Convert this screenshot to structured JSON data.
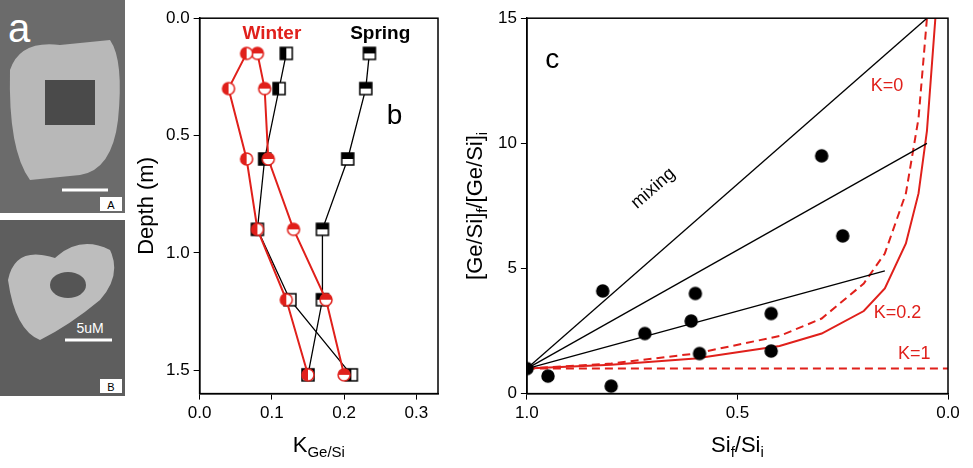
{
  "figure": {
    "letter": "a",
    "images": [
      {
        "label": "A"
      },
      {
        "label": "B",
        "scale_bar": "5uM"
      }
    ]
  },
  "chart_data": [
    {
      "type": "line",
      "letter": "b",
      "xlabel": [
        "K",
        {
          "sub": "Ge/Si"
        }
      ],
      "ylabel": [
        "Depth (m)"
      ],
      "xlim": [
        0,
        0.33
      ],
      "xticks": [
        {
          "value": 0,
          "label": "0.0"
        },
        {
          "value": 0.1,
          "label": "0.1"
        },
        {
          "value": 0.2,
          "label": "0.2"
        },
        {
          "value": 0.3,
          "label": "0.3"
        }
      ],
      "ylim": [
        1.6,
        0
      ],
      "yticks": [
        {
          "value": 0,
          "label": "0.0"
        },
        {
          "value": 0.5,
          "label": "0.5"
        },
        {
          "value": 1,
          "label": "1.0"
        },
        {
          "value": 1.5,
          "label": "1.5"
        }
      ],
      "grid": false,
      "series": [
        {
          "name": "Winter",
          "color": "#e0201b",
          "marker": "circle_left_half",
          "line_style": "solid",
          "x": [
            0.065,
            0.04,
            0.065,
            0.08,
            0.12,
            0.15
          ],
          "y": [
            0.15,
            0.3,
            0.6,
            0.9,
            1.2,
            1.52
          ]
        },
        {
          "name": "Winter",
          "color": "#e0201b",
          "marker": "circle_top_half",
          "line_style": "solid",
          "x": [
            0.08,
            0.09,
            0.095,
            0.13,
            0.175,
            0.2
          ],
          "y": [
            0.15,
            0.3,
            0.6,
            0.9,
            1.2,
            1.52
          ]
        },
        {
          "name": "Spring",
          "color": "#000000",
          "marker": "square_left_half",
          "line_style": "solid",
          "x": [
            0.12,
            0.11,
            0.09,
            0.08,
            0.125,
            0.21
          ],
          "y": [
            0.15,
            0.3,
            0.6,
            0.9,
            1.2,
            1.52
          ]
        },
        {
          "name": "Spring",
          "color": "#000000",
          "marker": "square_top_half",
          "line_style": "solid",
          "x": [
            0.235,
            0.23,
            0.205,
            0.17,
            0.17,
            0.15
          ],
          "y": [
            0.15,
            0.3,
            0.6,
            0.9,
            1.2,
            1.52
          ]
        }
      ]
    },
    {
      "type": "scatter",
      "letter": "c",
      "xlabel": [
        "Si",
        {
          "sub": "f"
        },
        "/Si",
        {
          "sub": "i"
        }
      ],
      "ylabel": [
        "[Ge/Si]",
        {
          "sub": "f"
        },
        "/[Ge/Si]",
        {
          "sub": "i"
        }
      ],
      "xlim": [
        1,
        0
      ],
      "xticks": [
        {
          "value": 1,
          "label": "1.0"
        },
        {
          "value": 0.5,
          "label": "0.5"
        },
        {
          "value": 0,
          "label": "0.0"
        }
      ],
      "ylim": [
        0,
        15
      ],
      "yticks": [
        0,
        5,
        10,
        15
      ],
      "grid": false,
      "series": [
        {
          "type": "scatter",
          "color": "#000000",
          "marker": "circle",
          "x": [
            1.0,
            0.95,
            0.8,
            0.82,
            0.72,
            0.6,
            0.61,
            0.59,
            0.42,
            0.42,
            0.3,
            0.25
          ],
          "y": [
            1.0,
            0.7,
            0.3,
            4.1,
            2.4,
            4.0,
            2.9,
            1.6,
            3.2,
            1.7,
            9.5,
            6.3
          ]
        },
        {
          "name": "mixing",
          "type": "line",
          "color": "#000000",
          "line_style": "solid",
          "x": [
            1,
            0.05
          ],
          "y": [
            1,
            15
          ]
        },
        {
          "type": "line",
          "color": "#000000",
          "line_style": "solid",
          "x": [
            1,
            0.05
          ],
          "y": [
            1,
            10
          ]
        },
        {
          "type": "line",
          "color": "#000000",
          "line_style": "solid",
          "x": [
            1,
            0.15
          ],
          "y": [
            1,
            4.9
          ]
        },
        {
          "name": "K=0",
          "type": "line",
          "color": "#e0201b",
          "line_style": "solid",
          "x": [
            1,
            0.8,
            0.6,
            0.4,
            0.3,
            0.2,
            0.15,
            0.1,
            0.07,
            0.05,
            0.03
          ],
          "y": [
            1,
            1.15,
            1.4,
            1.9,
            2.4,
            3.3,
            4.2,
            6,
            8,
            10.5,
            15
          ]
        },
        {
          "name": "K=0.2",
          "type": "line",
          "color": "#e0201b",
          "line_style": "dashed",
          "x": [
            1,
            0.8,
            0.6,
            0.4,
            0.3,
            0.2,
            0.15,
            0.1,
            0.07,
            0.05
          ],
          "y": [
            1,
            1.2,
            1.6,
            2.3,
            3,
            4.4,
            5.6,
            8,
            11,
            15
          ]
        },
        {
          "name": "K=1",
          "type": "line",
          "color": "#e0201b",
          "line_style": "dashed",
          "x": [
            1,
            0
          ],
          "y": [
            1,
            1
          ]
        }
      ]
    }
  ]
}
